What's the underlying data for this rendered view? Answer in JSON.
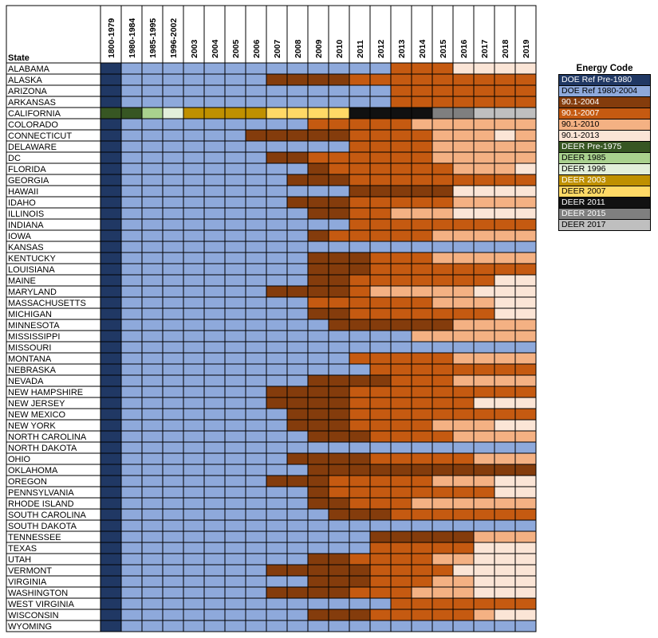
{
  "chart_data": {
    "type": "heatmap",
    "row_header": "State",
    "columns": [
      "1800-1979",
      "1980-1984",
      "1985-1995",
      "1996-2002",
      "2003",
      "2004",
      "2005",
      "2006",
      "2007",
      "2008",
      "2009",
      "2010",
      "2011",
      "2012",
      "2013",
      "2014",
      "2015",
      "2016",
      "2017",
      "2018",
      "2019"
    ],
    "legend_title": "Energy Code",
    "legend": [
      {
        "code": "A",
        "label": "DOE Ref Pre-1980",
        "color": "#203864"
      },
      {
        "code": "B",
        "label": "DOE Ref 1980-2004",
        "color": "#8EA9DB"
      },
      {
        "code": "C",
        "label": "90.1-2004",
        "color": "#843C0C"
      },
      {
        "code": "D",
        "label": "90.1-2007",
        "color": "#C55A11"
      },
      {
        "code": "E",
        "label": "90.1-2010",
        "color": "#F4B183"
      },
      {
        "code": "F",
        "label": "90.1-2013",
        "color": "#FBE5D6"
      },
      {
        "code": "G",
        "label": "DEER Pre-1975",
        "color": "#375623"
      },
      {
        "code": "H",
        "label": "DEER 1985",
        "color": "#A9D18E"
      },
      {
        "code": "I",
        "label": "DEER 1996",
        "color": "#E2EFDA"
      },
      {
        "code": "J",
        "label": "DEER 2003",
        "color": "#BF9000"
      },
      {
        "code": "K",
        "label": "DEER 2007",
        "color": "#FFD966"
      },
      {
        "code": "L",
        "label": "DEER 2011",
        "color": "#111111"
      },
      {
        "code": "M",
        "label": "DEER 2015",
        "color": "#7F7F7F"
      },
      {
        "code": "N",
        "label": "DEER 2017",
        "color": "#BFBFBF"
      }
    ],
    "rows": [
      {
        "state": "ALABAMA",
        "codes": "ABBBBBBBBBBBBBDDDFFFF"
      },
      {
        "state": "ALASKA",
        "codes": "ABBBBBBBCCCCDDDDDDDDD"
      },
      {
        "state": "ARIZONA",
        "codes": "ABBBBBBBBBBBBBDDDDDDD"
      },
      {
        "state": "ARKANSAS",
        "codes": "ABBBBBBBBBBBBBDDDDDDD"
      },
      {
        "state": "CALIFORNIA",
        "codes": "GGHIJJJJKKKKLLLLMMNNN"
      },
      {
        "state": "COLORADO",
        "codes": "ABBBBBBBBBDDDDDEEEEEE"
      },
      {
        "state": "CONNECTICUT",
        "codes": "ABBBBBBCCCCCDDDDEEEFE"
      },
      {
        "state": "DELAWARE",
        "codes": "ABBBBBBBBBBBDDDDEEEEE"
      },
      {
        "state": "DC",
        "codes": "ABBBBBBBCCDDDDDDEEEEE"
      },
      {
        "state": "FLORIDA",
        "codes": "ABBBBBBBBBCDDDDDDEEEF"
      },
      {
        "state": "GEORGIA",
        "codes": "ABBBBBBBBCCCDDDDDDDDD"
      },
      {
        "state": "HAWAII",
        "codes": "ABBBBBBBBBBBCCCCCFFFF"
      },
      {
        "state": "IDAHO",
        "codes": "ABBBBBBBBCCCDDDDDEEEE"
      },
      {
        "state": "ILLINOIS",
        "codes": "ABBBBBBBBBCCDDEEEFFFF"
      },
      {
        "state": "INDIANA",
        "codes": "ABBBBBBBBBBBDDDDDDDDD"
      },
      {
        "state": "IOWA",
        "codes": "ABBBBBBBBBCDDDDDEEEEE"
      },
      {
        "state": "KANSAS",
        "codes": "ABBBBBBBBBBBBBBBBBBBB"
      },
      {
        "state": "KENTUCKY",
        "codes": "ABBBBBBBBBCCCDDDEEEEE"
      },
      {
        "state": "LOUISIANA",
        "codes": "ABBBBBBBBBCCCDDDDDDDD"
      },
      {
        "state": "MAINE",
        "codes": "ABBBBBBBBBCCDDDDDDDFF"
      },
      {
        "state": "MARYLAND",
        "codes": "ABBBBBBBCCCCDEEEEEFFF"
      },
      {
        "state": "MASSACHUSETTS",
        "codes": "ABBBBBBBBBDDDDDDEEEFF"
      },
      {
        "state": "MICHIGAN",
        "codes": "ABBBBBBBBBCCDDDDDDDFF"
      },
      {
        "state": "MINNESOTA",
        "codes": "ABBBBBBBBBBCCCCCCEEEE"
      },
      {
        "state": "MISSISSIPPI",
        "codes": "ABBBBBBBBBBBBBBEEEEEE"
      },
      {
        "state": "MISSOURI",
        "codes": "ABBBBBBBBBBBBBBBBBBBB"
      },
      {
        "state": "MONTANA",
        "codes": "ABBBBBBBBBBBDDDDDEEEE"
      },
      {
        "state": "NEBRASKA",
        "codes": "ABBBBBBBBBBBBDDDDDDDD"
      },
      {
        "state": "NEVADA",
        "codes": "ABBBBBBBBBCCCCDDDEEEE"
      },
      {
        "state": "NEW HAMPSHIRE",
        "codes": "ABBBBBBBCCCCDDDDDDDDD"
      },
      {
        "state": "NEW JERSEY",
        "codes": "ABBBBBBBCCCCDDDDDDFFF"
      },
      {
        "state": "NEW MEXICO",
        "codes": "ABBBBBBBBCCCDDDDDDDDD"
      },
      {
        "state": "NEW YORK",
        "codes": "ABBBBBBBBCCCDDDDEEEFF"
      },
      {
        "state": "NORTH CAROLINA",
        "codes": "ABBBBBBBBBCCCDDDDEEEE"
      },
      {
        "state": "NORTH DAKOTA",
        "codes": "ABBBBBBBBBBBBBBBBBBBB"
      },
      {
        "state": "OHIO",
        "codes": "ABBBBBBBBCCCCDDDDDEEE"
      },
      {
        "state": "OKLAHOMA",
        "codes": "ABBBBBBBBBCCCCCCCCCCC"
      },
      {
        "state": "OREGON",
        "codes": "ABBBBBBBCCCDDDDDEEEFF"
      },
      {
        "state": "PENNSYLVANIA",
        "codes": "ABBBBBBBBBCDDDDDDDDFF"
      },
      {
        "state": "RHODE ISLAND",
        "codes": "ABBBBBBBBBCCDDDEEEEEE"
      },
      {
        "state": "SOUTH CAROLINA",
        "codes": "ABBBBBBBBBBCCCDDDDDDD"
      },
      {
        "state": "SOUTH DAKOTA",
        "codes": "ABBBBBBBBBBBBBBBBBBBB"
      },
      {
        "state": "TENNESSEE",
        "codes": "ABBBBBBBBBBBBCCCCCEEE"
      },
      {
        "state": "TEXAS",
        "codes": "ABBBBBBBBBBBBDDDDDFFF"
      },
      {
        "state": "UTAH",
        "codes": "ABBBBBBBBBCCDDDDEEFFF"
      },
      {
        "state": "VERMONT",
        "codes": "ABBBBBBBCCCCCDDDDFFFF"
      },
      {
        "state": "VIRGINIA",
        "codes": "ABBBBBBBBBCCCDDDEEFFF"
      },
      {
        "state": "WASHINGTON",
        "codes": "ABBBBBBBCCCCDDDEEEFFF"
      },
      {
        "state": "WEST VIRGINIA",
        "codes": "ABBBBBBBBBBBBBDDDDDDD"
      },
      {
        "state": "WISCONSIN",
        "codes": "ABBBBBBBBBCCCDDDDDEFF"
      },
      {
        "state": "WYOMING",
        "codes": "ABBBBBBBBBBBBBBBBBBBB"
      }
    ]
  }
}
